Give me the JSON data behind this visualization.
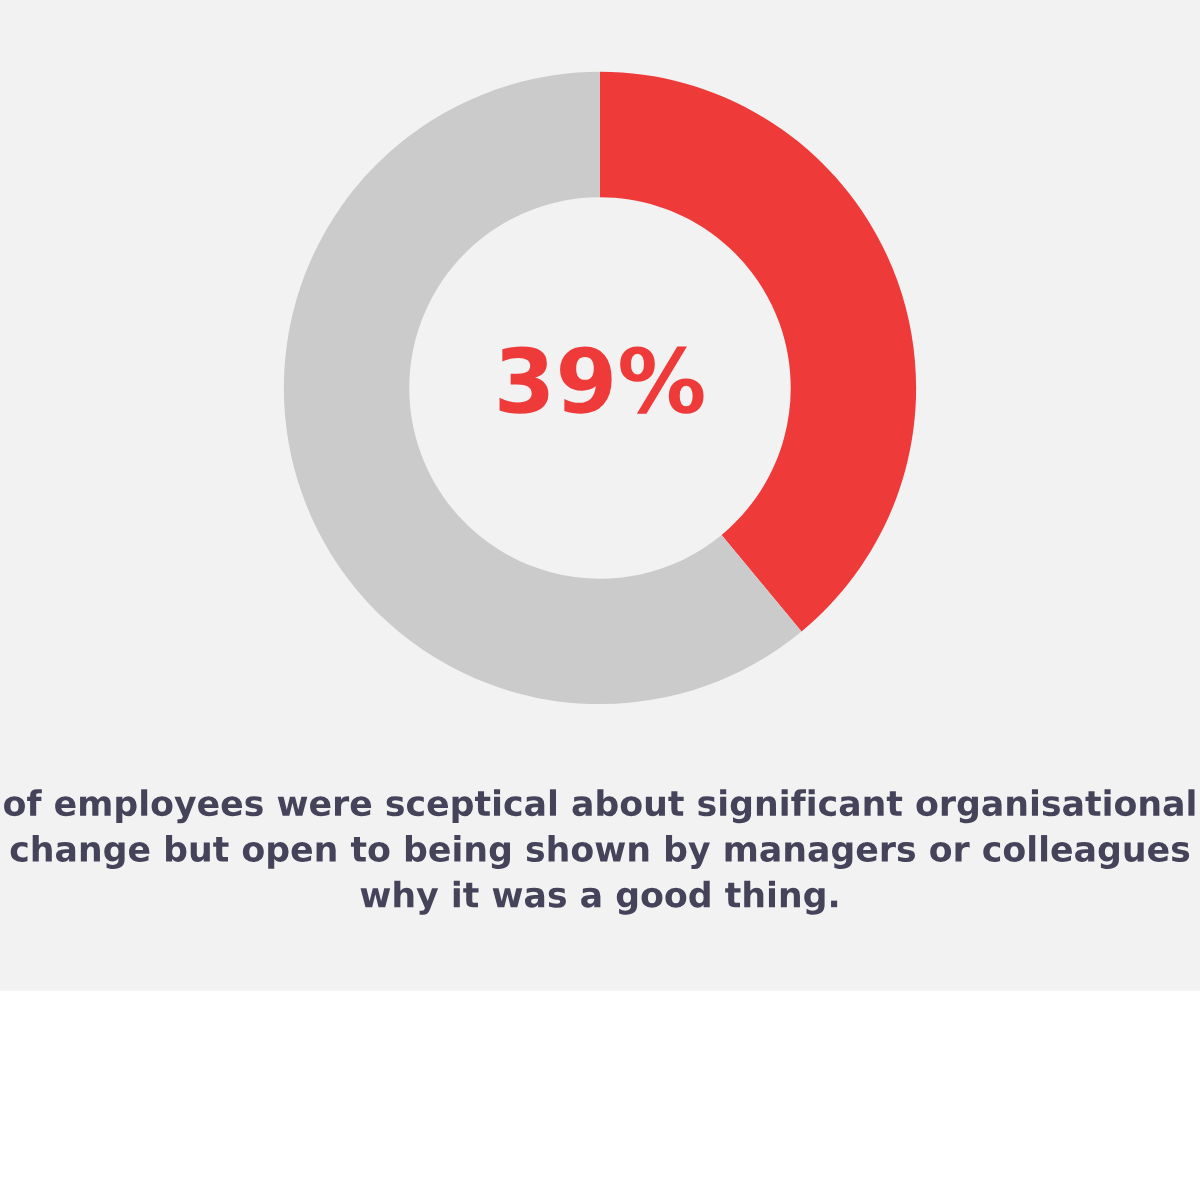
{
  "chart_data": {
    "type": "donut",
    "categories": [
      null,
      null
    ],
    "values": [
      39,
      61
    ],
    "colors": [
      "#ef3a3a",
      "#cbcbcb"
    ],
    "value_labels": [
      "39%",
      null
    ],
    "annotations": [
      "of employees were sceptical about significant organisational change but open to being shown by managers or colleagues why it was a good thing."
    ]
  }
}
